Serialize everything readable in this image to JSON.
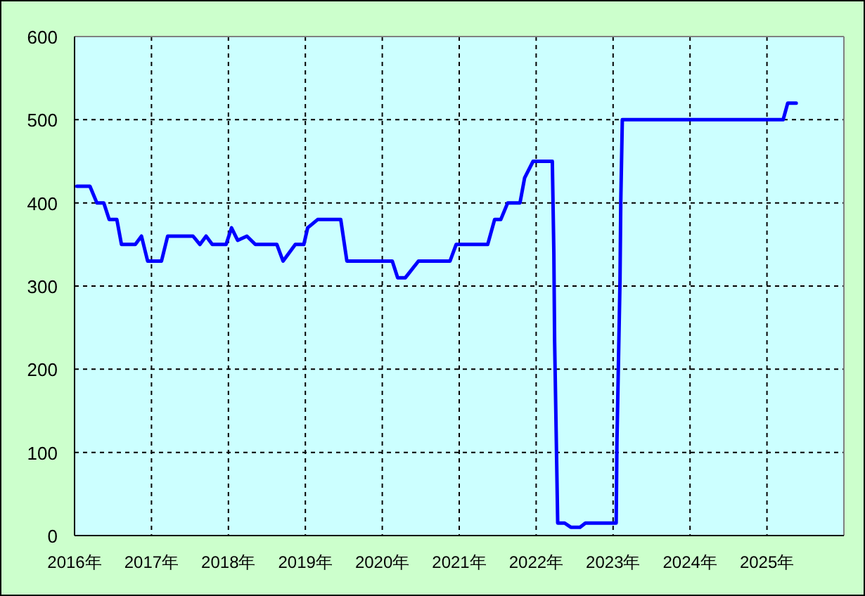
{
  "chart_data": {
    "type": "line",
    "x": [
      2016.03,
      2016.2,
      2016.29,
      2016.38,
      2016.45,
      2016.55,
      2016.61,
      2016.79,
      2016.87,
      2016.95,
      2017.13,
      2017.21,
      2017.54,
      2017.63,
      2017.71,
      2017.79,
      2017.97,
      2018.04,
      2018.12,
      2018.24,
      2018.35,
      2018.63,
      2018.71,
      2018.87,
      2018.98,
      2019.03,
      2019.16,
      2019.46,
      2019.54,
      2020.13,
      2020.2,
      2020.3,
      2020.47,
      2020.88,
      2020.96,
      2021.37,
      2021.46,
      2021.54,
      2021.63,
      2021.79,
      2021.85,
      2021.96,
      2022.21,
      2022.23,
      2022.24,
      2022.26,
      2022.28,
      2022.37,
      2022.45,
      2022.57,
      2022.64,
      2023.04,
      2023.05,
      2023.07,
      2023.09,
      2023.1,
      2023.12,
      2025.21,
      2025.27,
      2025.38
    ],
    "series": [
      {
        "color": "#0000ff",
        "values": [
          420,
          420,
          400,
          400,
          380,
          380,
          350,
          350,
          360,
          330,
          330,
          360,
          360,
          350,
          360,
          350,
          350,
          370,
          355,
          360,
          350,
          350,
          330,
          350,
          350,
          370,
          380,
          380,
          330,
          330,
          310,
          310,
          330,
          330,
          350,
          350,
          380,
          380,
          400,
          400,
          430,
          450,
          450,
          340,
          233,
          125,
          15,
          15,
          10,
          10,
          15,
          15,
          112,
          210,
          307,
          402,
          500,
          500,
          520,
          520
        ]
      }
    ],
    "xlim": [
      2016,
      2026
    ],
    "ylim": [
      0,
      600
    ],
    "xticks": [
      {
        "value": 2016,
        "label": "2016年"
      },
      {
        "value": 2017,
        "label": "2017年"
      },
      {
        "value": 2018,
        "label": "2018年"
      },
      {
        "value": 2019,
        "label": "2019年"
      },
      {
        "value": 2020,
        "label": "2020年"
      },
      {
        "value": 2021,
        "label": "2021年"
      },
      {
        "value": 2022,
        "label": "2022年"
      },
      {
        "value": 2023,
        "label": "2023年"
      },
      {
        "value": 2024,
        "label": "2024年"
      },
      {
        "value": 2025,
        "label": "2025年"
      }
    ],
    "yticks": [
      0,
      100,
      200,
      300,
      400,
      500,
      600
    ],
    "grid": true,
    "line_style": "solid"
  }
}
